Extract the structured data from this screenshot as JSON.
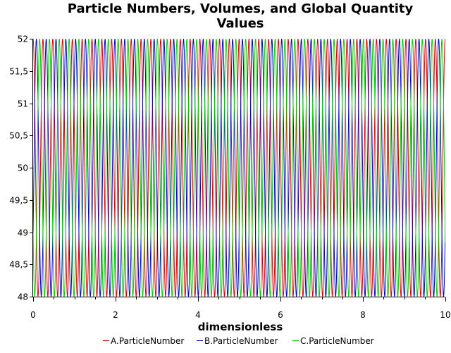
{
  "chart_data": {
    "type": "line",
    "title_lines": [
      "Particle Numbers, Volumes, and Global Quantity",
      "Values"
    ],
    "xlabel": "dimensionless",
    "ylabel": "",
    "xlim": [
      0,
      10
    ],
    "ylim": [
      48,
      52
    ],
    "grid": false,
    "legend_position": "bottom",
    "x_ticks": [
      0,
      2,
      4,
      6,
      8,
      10
    ],
    "x_tick_labels": [
      "0",
      "2",
      "4",
      "6",
      "8",
      "10"
    ],
    "y_ticks": [
      48,
      48.5,
      49,
      49.5,
      50,
      50.5,
      51,
      51.5,
      52
    ],
    "y_tick_labels": [
      "48",
      "48,5",
      "49",
      "49,5",
      "50",
      "50,5",
      "51",
      "51,5",
      "52"
    ],
    "oscillation": {
      "center": 50,
      "amplitude": 2,
      "period": 0.238,
      "x_start": 0,
      "x_end": 10,
      "samples": 1400
    },
    "series": [
      {
        "name": "A.ParticleNumber",
        "color": "#dd0000",
        "phase_offset": 0.0
      },
      {
        "name": "B.ParticleNumber",
        "color": "#0000cc",
        "phase_offset": 0.3333
      },
      {
        "name": "C.ParticleNumber",
        "color": "#00cc00",
        "phase_offset": 0.6667
      }
    ]
  }
}
